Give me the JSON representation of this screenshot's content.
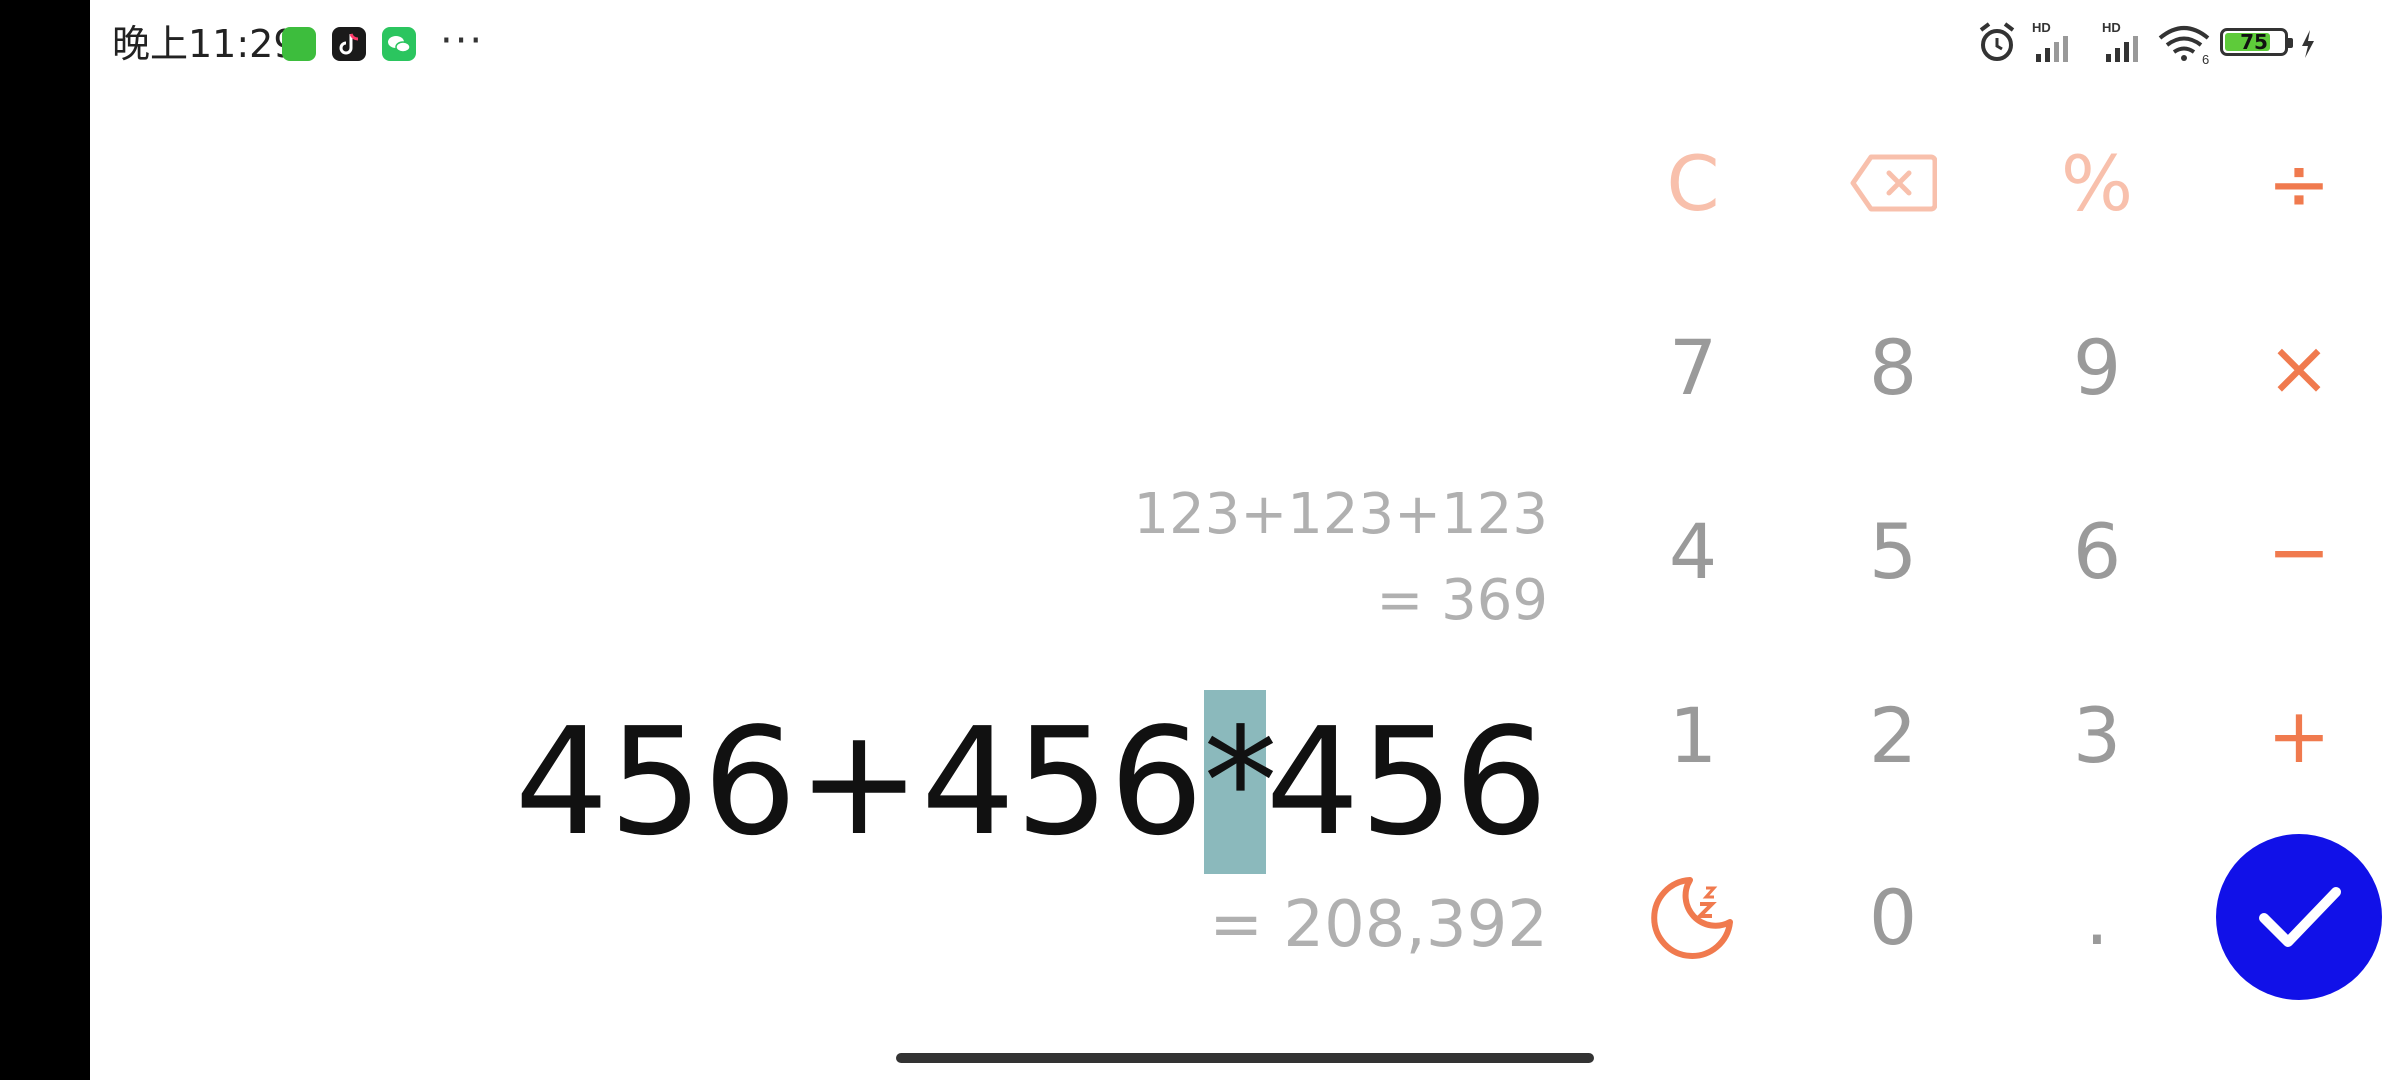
{
  "status_bar": {
    "time": "晚上11:29",
    "more": "···",
    "battery_level": "75",
    "signal_label_1": "HD",
    "signal_label_2": "HD",
    "wifi_label": "6"
  },
  "display": {
    "history_expression": "123+123+123",
    "history_result": "= 369",
    "expression_part1": "456+456",
    "expression_cursor": "*",
    "expression_part2": "456",
    "result": "= 208,392"
  },
  "keypad": {
    "clear": "C",
    "percent": "%",
    "divide": "÷",
    "multiply": "×",
    "minus": "−",
    "plus": "+",
    "decimal": ".",
    "digits": [
      "0",
      "1",
      "2",
      "3",
      "4",
      "5",
      "6",
      "7",
      "8",
      "9"
    ]
  },
  "colors": {
    "operator": "#f07a4e",
    "operator_light": "#f8c0ac",
    "digit": "#9a9a9a",
    "equals_bg": "#1111e8",
    "cursor_highlight": "#8bb9bc"
  }
}
